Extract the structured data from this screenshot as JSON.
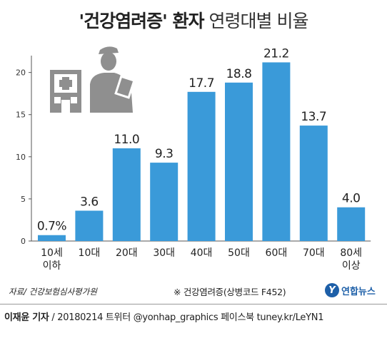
{
  "title_bold": "'건강염려증' 환자",
  "title_rest": "연령대별 비율",
  "source": "자료/ 건강보험심사평가원",
  "note": "※ 건강염려증(상병코드 F452)",
  "logo": {
    "mark": "Y",
    "text": "연합뉴스"
  },
  "credit_bold": "이재윤 기자",
  "credit_rest": " / 20180214  트위터 @yonhap_graphics  페이스북 tuney.kr/LeYN1",
  "colors": {
    "bar": "#3a9ad9",
    "illustration": "#8f8f8f",
    "axis": "#555555",
    "logo": "#1d5fa8"
  },
  "icons": [
    "hospital-icon",
    "doctor-icon"
  ],
  "chart_data": {
    "type": "bar",
    "categories": [
      "10세\n이하",
      "10대",
      "20대",
      "30대",
      "40대",
      "50대",
      "60대",
      "70대",
      "80세\n이상"
    ],
    "values": [
      0.7,
      3.6,
      11.0,
      9.3,
      17.7,
      18.8,
      21.2,
      13.7,
      4.0
    ],
    "value_labels": [
      "0.7%",
      "3.6",
      "11.0",
      "9.3",
      "17.7",
      "18.8",
      "21.2",
      "13.7",
      "4.0"
    ],
    "yticks": [
      0,
      5,
      10,
      15,
      20
    ],
    "ylim": [
      0,
      22
    ],
    "grid": false,
    "xlabel": "",
    "ylabel": ""
  }
}
